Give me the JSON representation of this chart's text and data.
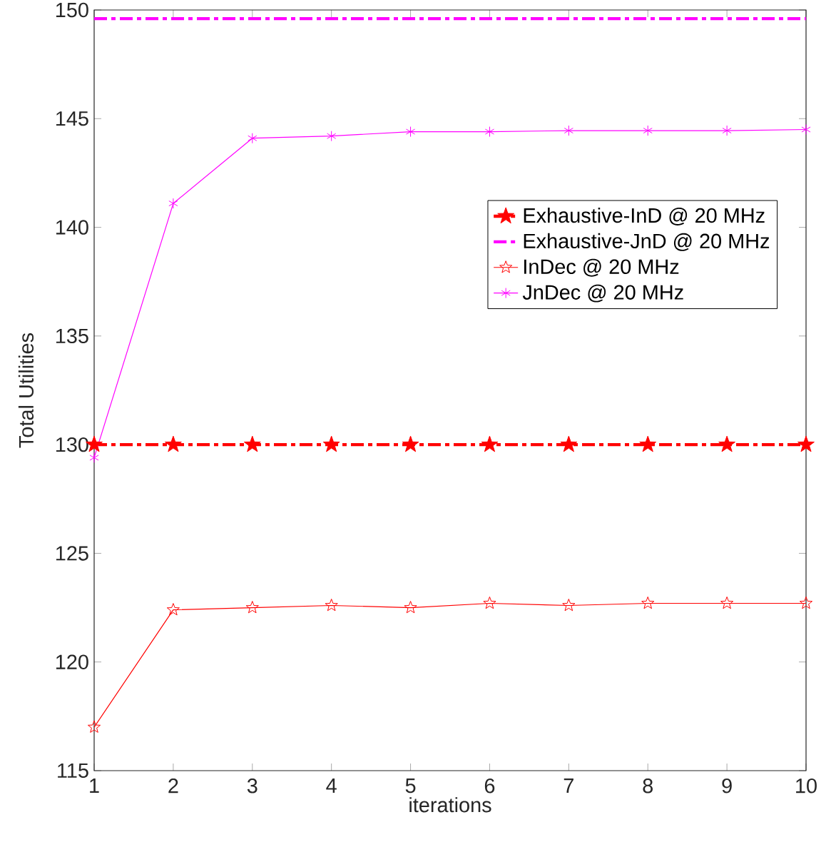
{
  "chart_data": {
    "type": "line",
    "xlabel": "iterations",
    "ylabel": "Total Utilities",
    "x": [
      1,
      2,
      3,
      4,
      5,
      6,
      7,
      8,
      9,
      10
    ],
    "xlim": [
      1,
      10
    ],
    "ylim": [
      115,
      150
    ],
    "xticks": [
      1,
      2,
      3,
      4,
      5,
      6,
      7,
      8,
      9,
      10
    ],
    "yticks": [
      115,
      120,
      125,
      130,
      135,
      140,
      145,
      150
    ],
    "grid": false,
    "legend": "top right",
    "series": [
      {
        "name": "Exhaustive-InD @ 20 MHz",
        "color": "#ff0000",
        "marker": "star",
        "line_style": "dashed",
        "values": [
          130,
          130,
          130,
          130,
          130,
          130,
          130,
          130,
          130,
          130
        ]
      },
      {
        "name": "Exhaustive-JnD @ 20 MHz",
        "color": "#ff00ff",
        "marker": "none",
        "line_style": "dashed",
        "values": [
          149.6,
          149.6,
          149.6,
          149.6,
          149.6,
          149.6,
          149.6,
          149.6,
          149.6,
          149.6
        ]
      },
      {
        "name": "InDec @ 20 MHz",
        "color": "#ff0000",
        "marker": "star",
        "line_style": "solid",
        "values": [
          117.0,
          122.4,
          122.5,
          122.6,
          122.5,
          122.7,
          122.6,
          122.7,
          122.7,
          122.7
        ]
      },
      {
        "name": "JnDec @ 20 MHz",
        "color": "#ff00ff",
        "marker": "cross",
        "line_style": "solid",
        "values": [
          129.4,
          141.1,
          144.1,
          144.2,
          144.4,
          144.4,
          144.45,
          144.45,
          144.45,
          144.5
        ]
      }
    ]
  }
}
